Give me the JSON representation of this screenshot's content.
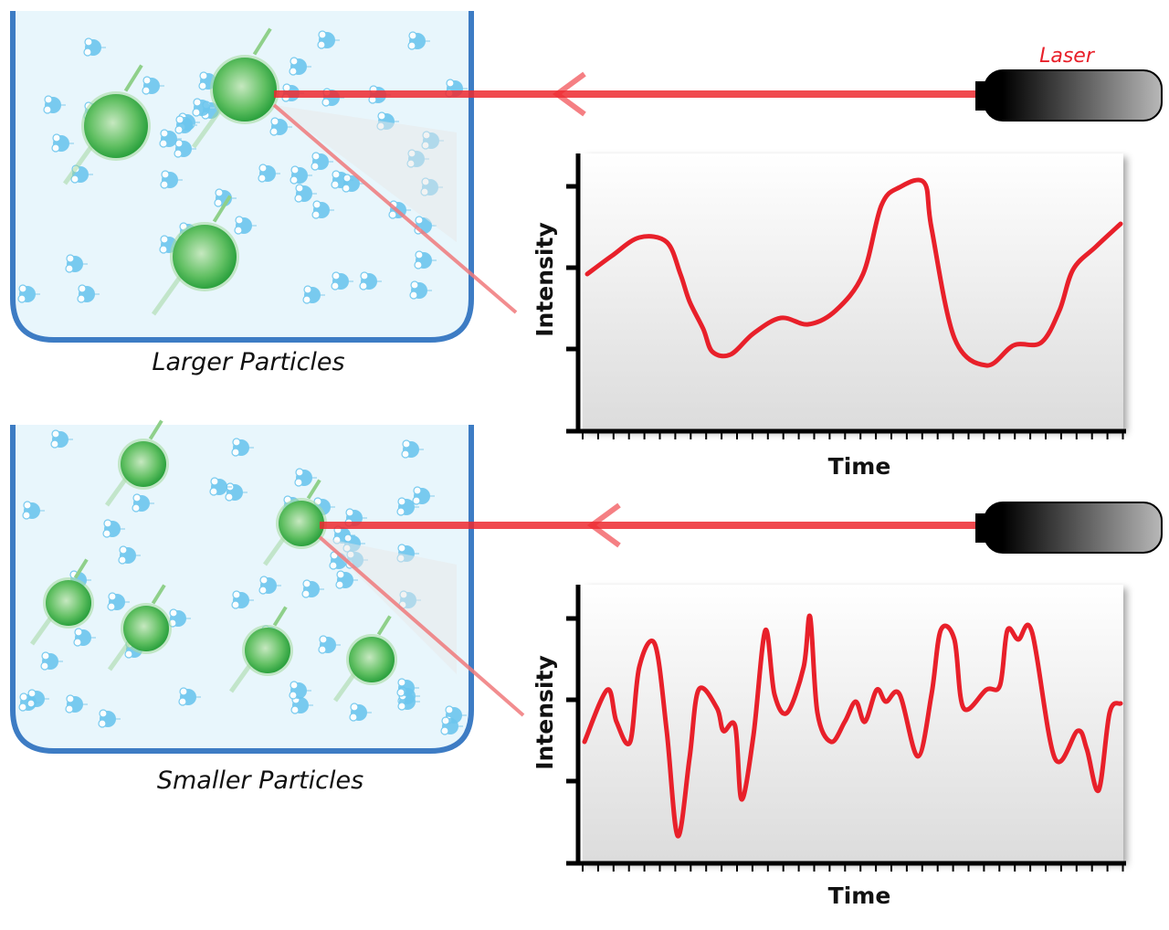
{
  "laser_label": "Laser",
  "panels": [
    {
      "caption": "Larger Particles",
      "ylabel": "Intensity",
      "xlabel": "Time"
    },
    {
      "caption": "Smaller Particles",
      "ylabel": "Intensity",
      "xlabel": "Time"
    }
  ],
  "colors": {
    "beam": "#ee2a30",
    "trace": "#e8202a",
    "container": "#3d7cc4",
    "liquid": "#e8f6fc",
    "particle": "#3fb44a",
    "solvent_molecule": "#6cc6ee"
  }
}
